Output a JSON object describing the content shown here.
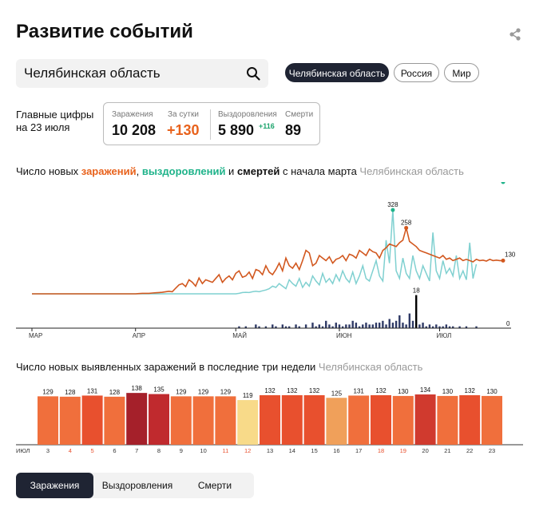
{
  "title": "Развитие событий",
  "search": {
    "value": "Челябинская область"
  },
  "region_pills": [
    "Челябинская область",
    "Россия",
    "Мир"
  ],
  "summary": {
    "label": "Главные цифры на 23 июля",
    "infections_label": "Заражения",
    "infections": "10 208",
    "daily_label": "За сутки",
    "daily": "+130",
    "recoveries_label": "Выздоровления",
    "recoveries": "5 890",
    "recoveries_delta": "+116",
    "deaths_label": "Смерти",
    "deaths": "89"
  },
  "chart1_title": {
    "p1": "Число новых ",
    "infections": "заражений",
    "comma": ", ",
    "recoveries": "выздоровлений",
    "and": " и ",
    "deaths": "смертей",
    "p2": " с начала марта ",
    "region": "Челябинская область"
  },
  "chart2_title": {
    "text": "Число новых выявленных заражений в последние три недели ",
    "region": "Челябинская область"
  },
  "tabs": [
    "Заражения",
    "Выздоровления",
    "Смерти"
  ],
  "colors": {
    "infections": "#d2581f",
    "recoveries": "#7fd0d0",
    "deaths": "#2f3a66",
    "dark": "#1f2433"
  },
  "chart_data": [
    {
      "type": "line",
      "x_labels": [
        "МАР",
        "АПР",
        "МАЙ",
        "ИЮН",
        "ИЮЛ"
      ],
      "series": [
        {
          "name": "заражений",
          "values": [
            0,
            0,
            0,
            0,
            0,
            0,
            0,
            0,
            0,
            0,
            0,
            0,
            0,
            0,
            0,
            0,
            0,
            0,
            0,
            0,
            0,
            0,
            0,
            0,
            0,
            0,
            0,
            0,
            0,
            0,
            0,
            0,
            1,
            2,
            2,
            2,
            3,
            4,
            5,
            6,
            8,
            10,
            8,
            22,
            35,
            40,
            28,
            55,
            45,
            30,
            62,
            40,
            55,
            50,
            45,
            60,
            75,
            45,
            60,
            70,
            55,
            80,
            90,
            65,
            70,
            85,
            60,
            95,
            90,
            75,
            110,
            85,
            75,
            95,
            120,
            90,
            140,
            110,
            100,
            120,
            95,
            130,
            170,
            160,
            110,
            120,
            150,
            140,
            130,
            145,
            120,
            135,
            140,
            150,
            130,
            155,
            150,
            140,
            170,
            160,
            150,
            175,
            165,
            160,
            140,
            170,
            180,
            195,
            190,
            185,
            200,
            210,
            258,
            205,
            195,
            185,
            170,
            165,
            160,
            155,
            150,
            145,
            140,
            150,
            135,
            140,
            130,
            135,
            140,
            130,
            135,
            130,
            125,
            135,
            130,
            132,
            128,
            135,
            130,
            132,
            130,
            130
          ]
        },
        {
          "name": "выздоровлений",
          "values": [
            0,
            0,
            0,
            0,
            0,
            0,
            0,
            0,
            0,
            0,
            0,
            0,
            0,
            0,
            0,
            0,
            0,
            0,
            0,
            0,
            0,
            0,
            0,
            0,
            0,
            0,
            0,
            0,
            0,
            0,
            0,
            0,
            0,
            0,
            0,
            0,
            0,
            0,
            0,
            0,
            0,
            0,
            0,
            0,
            0,
            0,
            0,
            0,
            0,
            0,
            0,
            0,
            0,
            0,
            0,
            0,
            0,
            0,
            0,
            0,
            0,
            0,
            2,
            5,
            6,
            5,
            8,
            10,
            8,
            12,
            15,
            20,
            30,
            25,
            40,
            30,
            20,
            55,
            40,
            30,
            60,
            25,
            45,
            30,
            70,
            50,
            35,
            80,
            45,
            60,
            40,
            75,
            50,
            90,
            60,
            45,
            85,
            40,
            70,
            110,
            60,
            50,
            90,
            130,
            70,
            50,
            210,
            120,
            328,
            90,
            60,
            140,
            80,
            60,
            150,
            90,
            60,
            110,
            80,
            50,
            240,
            90,
            60,
            130,
            80,
            100,
            70,
            150,
            60,
            90,
            55,
            200,
            60,
            116
          ]
        },
        {
          "name": "смертей",
          "values": [
            0,
            0,
            0,
            0,
            0,
            0,
            0,
            0,
            0,
            0,
            0,
            0,
            0,
            0,
            0,
            0,
            0,
            0,
            0,
            0,
            0,
            0,
            0,
            0,
            0,
            0,
            0,
            0,
            0,
            0,
            0,
            0,
            0,
            0,
            0,
            0,
            0,
            0,
            0,
            0,
            0,
            0,
            0,
            0,
            0,
            0,
            0,
            0,
            0,
            0,
            0,
            0,
            0,
            0,
            0,
            0,
            0,
            0,
            0,
            0,
            0,
            0,
            1,
            0,
            1,
            0,
            0,
            2,
            1,
            0,
            1,
            0,
            2,
            1,
            0,
            2,
            1,
            1,
            0,
            2,
            1,
            0,
            2,
            0,
            3,
            1,
            2,
            1,
            4,
            2,
            1,
            3,
            2,
            1,
            2,
            2,
            4,
            3,
            1,
            2,
            3,
            2,
            2,
            3,
            3,
            4,
            2,
            5,
            3,
            4,
            7,
            3,
            2,
            8,
            4,
            18,
            2,
            3,
            1,
            2,
            1,
            2,
            1,
            1,
            2,
            1,
            1,
            0,
            1,
            0,
            1,
            0,
            0,
            1,
            0,
            0,
            0,
            0
          ]
        }
      ],
      "labels": {
        "peak_recoveries": "328",
        "peak_infections": "258",
        "peak_deaths": "18",
        "last_infections": "130",
        "last_recoveries": "116",
        "last_deaths": "0"
      }
    },
    {
      "type": "bar",
      "xlabel": "ИЮЛ",
      "categories": [
        "3",
        "4",
        "5",
        "6",
        "7",
        "8",
        "9",
        "10",
        "11",
        "12",
        "13",
        "14",
        "15",
        "16",
        "17",
        "18",
        "19",
        "20",
        "21",
        "22",
        "23"
      ],
      "values": [
        129,
        128,
        131,
        128,
        138,
        135,
        129,
        129,
        129,
        119,
        132,
        132,
        132,
        125,
        131,
        132,
        130,
        134,
        130,
        132,
        130
      ],
      "weekend_days": [
        "4",
        "5",
        "11",
        "12",
        "18",
        "19"
      ],
      "bar_colors": [
        "#f06f3c",
        "#f06f3c",
        "#e8502e",
        "#f06f3c",
        "#a5202a",
        "#c02a2e",
        "#f06f3c",
        "#f06f3c",
        "#f06f3c",
        "#f8da89",
        "#e8502e",
        "#e8502e",
        "#e8502e",
        "#f0a05a",
        "#f06f3c",
        "#e8502e",
        "#f06f3c",
        "#d03a2e",
        "#f06f3c",
        "#e8502e",
        "#f06f3c"
      ]
    }
  ]
}
